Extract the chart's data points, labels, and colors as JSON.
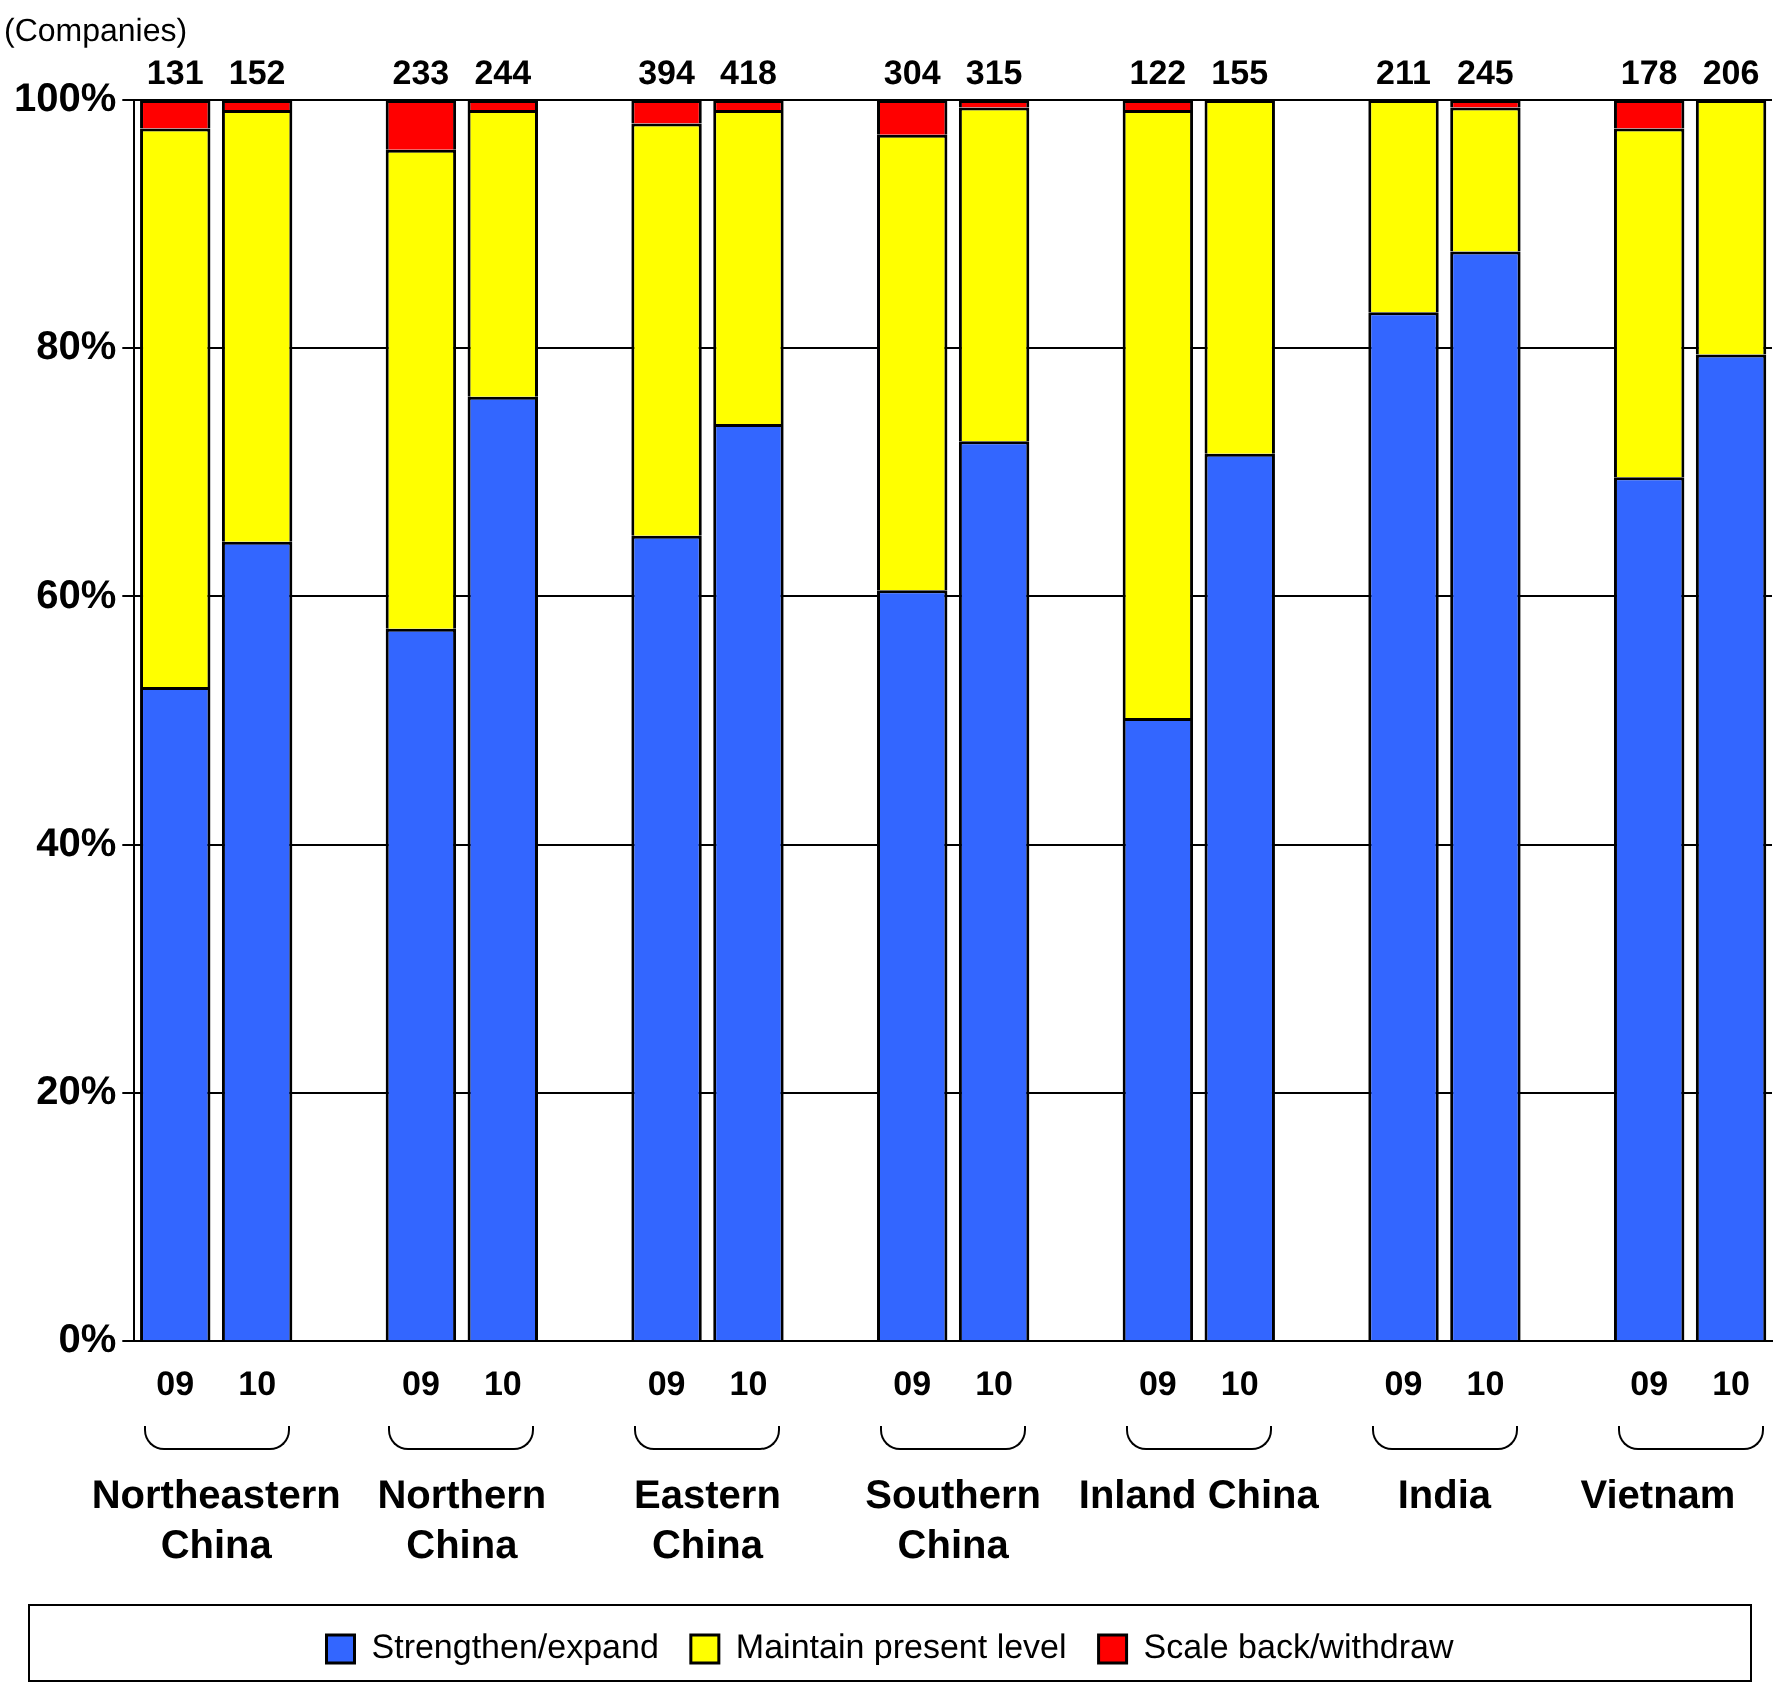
{
  "chart_data": {
    "type": "bar",
    "stacked": true,
    "categories": [
      "09",
      "10",
      null,
      "09",
      "10",
      null,
      "09",
      "10",
      null,
      "09",
      "10",
      null,
      "09",
      "10",
      null,
      "09",
      "10",
      null,
      "09",
      "10"
    ],
    "series": [
      {
        "name": "Strengthen/expand",
        "color": "#3366ff",
        "values": [
          52.7,
          64.4,
          null,
          57.4,
          76.1,
          null,
          64.9,
          73.9,
          null,
          60.5,
          72.5,
          null,
          50.2,
          71.5,
          null,
          82.9,
          87.8,
          null,
          69.6,
          79.5
        ]
      },
      {
        "name": "Maintain present level",
        "color": "#ffff00",
        "values": [
          45.0,
          34.8,
          null,
          38.6,
          23.1,
          null,
          33.2,
          25.3,
          null,
          36.7,
          26.9,
          null,
          49.0,
          28.5,
          null,
          17.1,
          11.6,
          null,
          28.1,
          20.5
        ]
      },
      {
        "name": "Scale back/withdraw",
        "color": "#ff0000",
        "values": [
          2.3,
          0.8,
          null,
          4.0,
          0.8,
          null,
          1.9,
          0.8,
          null,
          2.8,
          0.6,
          null,
          0.8,
          0,
          null,
          0,
          0.6,
          null,
          2.3,
          0
        ]
      }
    ],
    "annotations": [
      "(Companies)",
      "Northeastern China",
      "Northern China",
      "Eastern China",
      "Southern China",
      "Inland China",
      "India",
      "Vietnam",
      "131",
      "152",
      "233",
      "244",
      "394",
      "418",
      "304",
      "315",
      "122",
      "155",
      "211",
      "245",
      "178",
      "206"
    ],
    "ylim": [
      0,
      100
    ],
    "yticks": [
      {
        "value": 0,
        "label": "0%"
      },
      {
        "value": 20,
        "label": "20%"
      },
      {
        "value": 40,
        "label": "40%"
      },
      {
        "value": 60,
        "label": "60%"
      },
      {
        "value": 80,
        "label": "80%"
      },
      {
        "value": 100,
        "label": "100%"
      }
    ],
    "grid": "y",
    "legend": "bottom"
  }
}
